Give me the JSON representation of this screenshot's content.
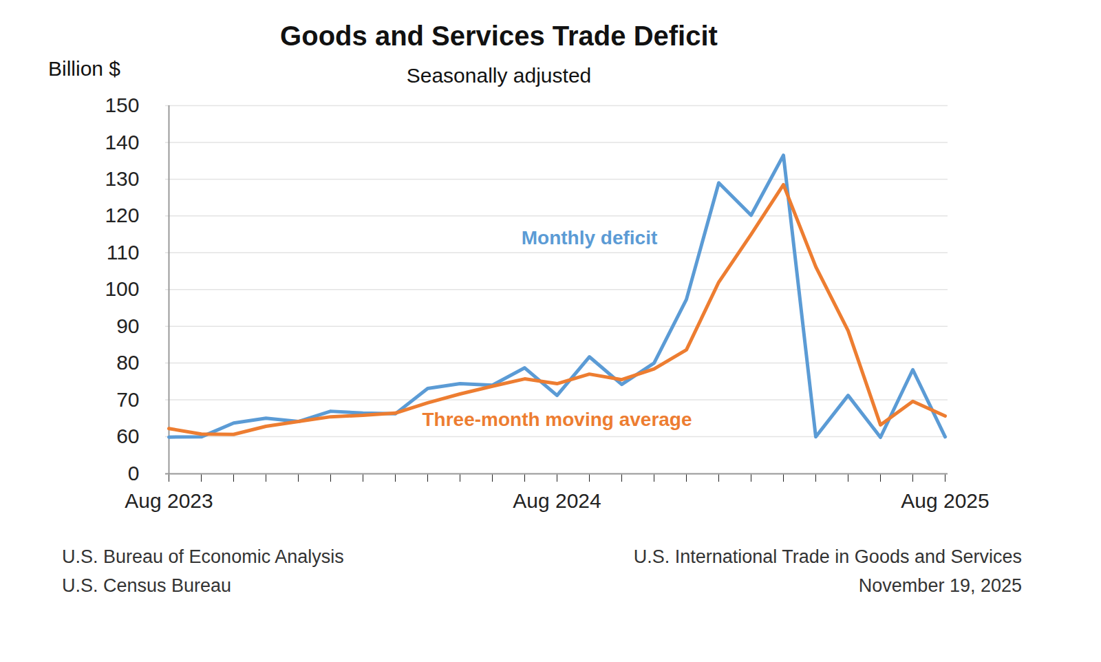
{
  "chart_data": {
    "type": "line",
    "title": "Goods and Services Trade Deficit",
    "subtitle": "Seasonally adjusted",
    "y_label": "Billion $",
    "categories": [
      "Aug 2023",
      null,
      null,
      null,
      null,
      null,
      null,
      null,
      null,
      null,
      null,
      null,
      "Aug 2024",
      null,
      null,
      null,
      null,
      null,
      null,
      null,
      null,
      null,
      null,
      null,
      "Aug 2025"
    ],
    "series": [
      {
        "name": "Monthly deficit",
        "color": "#5b9bd5",
        "values": [
          59.3,
          59.6,
          63.7,
          65.0,
          64.1,
          66.9,
          66.4,
          66.2,
          73.1,
          74.4,
          74.0,
          78.7,
          71.2,
          81.7,
          74.2,
          80.0,
          97.3,
          129.0,
          120.2,
          136.5,
          59.8,
          71.2,
          58.9,
          78.2,
          59.6
        ]
      },
      {
        "name": "Three-month moving average",
        "color": "#ed7d31",
        "values": [
          62.2,
          60.7,
          60.6,
          62.8,
          64.1,
          65.4,
          65.8,
          66.4,
          69.2,
          71.6,
          73.7,
          75.7,
          74.4,
          77.0,
          75.5,
          78.4,
          83.6,
          102.0,
          115.0,
          128.5,
          106.2,
          88.8,
          63.2,
          69.6,
          65.6
        ]
      }
    ],
    "annotations": [
      {
        "text": "Monthly deficit",
        "x": 13,
        "y": 114,
        "color": "#5b9bd5"
      },
      {
        "text": "Three-month moving average",
        "x": 12,
        "y": 64.5,
        "color": "#ed7d31"
      }
    ],
    "ylim": [
      0,
      150
    ],
    "yticks": [
      0,
      60,
      70,
      80,
      90,
      100,
      110,
      120,
      130,
      140,
      150
    ],
    "grid": true,
    "sources": [
      "U.S. Bureau of Economic Analysis",
      "U.S. Census Bureau"
    ],
    "release": [
      "U.S. International Trade in Goods and Services",
      "November 19, 2025"
    ]
  }
}
